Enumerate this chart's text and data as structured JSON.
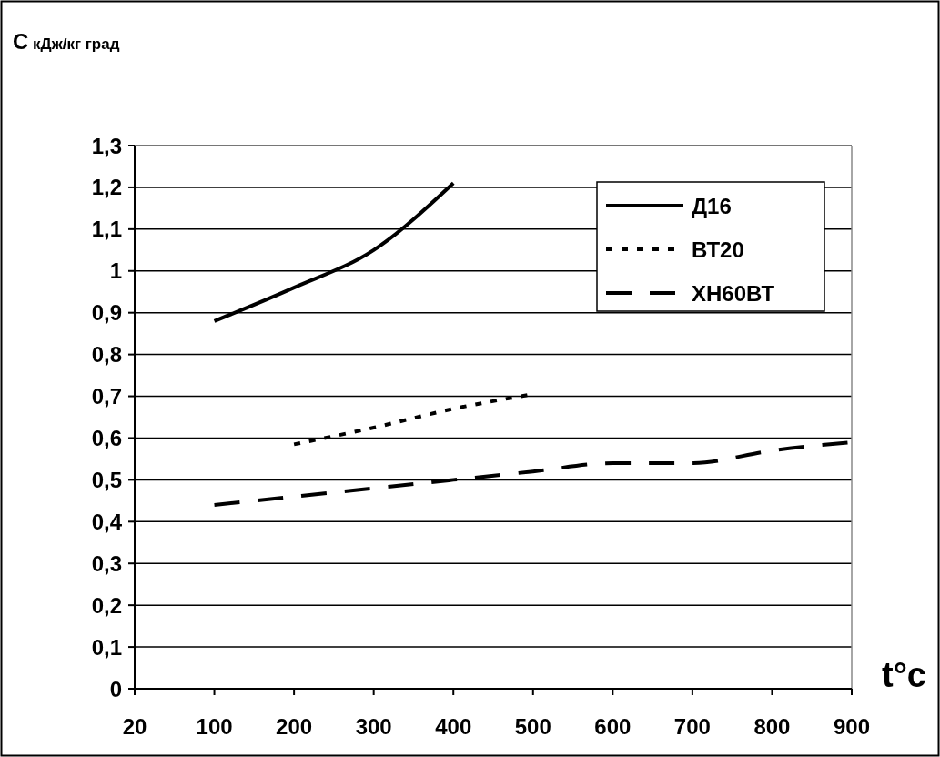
{
  "chart_data": {
    "type": "line",
    "ylabel": "С кДж/кг град",
    "xlabel": "t°c",
    "categories": [
      "20",
      "100",
      "200",
      "300",
      "400",
      "500",
      "600",
      "700",
      "800",
      "900"
    ],
    "ylim": [
      0,
      1.3
    ],
    "yticks": [
      0,
      {
        "value": 0.1,
        "label": "0,1"
      },
      {
        "value": 0.2,
        "label": "0,2"
      },
      {
        "value": 0.3,
        "label": "0,3"
      },
      {
        "value": 0.4,
        "label": "0,4"
      },
      {
        "value": 0.5,
        "label": "0,5"
      },
      {
        "value": 0.6,
        "label": "0,6"
      },
      {
        "value": 0.7,
        "label": "0,7"
      },
      {
        "value": 0.8,
        "label": "0,8"
      },
      {
        "value": 0.9,
        "label": "0,9"
      },
      1,
      {
        "value": 1.1,
        "label": "1,1"
      },
      {
        "value": 1.2,
        "label": "1,2"
      },
      {
        "value": 1.3,
        "label": "1,3"
      }
    ],
    "grid": "y",
    "legend": "top right",
    "marker": "none",
    "series": [
      {
        "name": "Д16",
        "color": "#000000",
        "line_style": "solid",
        "values": [
          null,
          0.88,
          0.96,
          1.05,
          1.21,
          null,
          null,
          null,
          null,
          null
        ]
      },
      {
        "name": "ВТ20",
        "color": "#000000",
        "line_style": "dotted",
        "values": [
          null,
          null,
          0.585,
          0.625,
          0.67,
          0.705,
          null,
          null,
          null,
          null
        ]
      },
      {
        "name": "ХН60ВТ",
        "color": "#000000",
        "line_style": "dashed",
        "values": [
          null,
          0.44,
          0.46,
          0.48,
          0.5,
          0.52,
          0.54,
          0.54,
          0.57,
          0.59
        ]
      }
    ]
  }
}
